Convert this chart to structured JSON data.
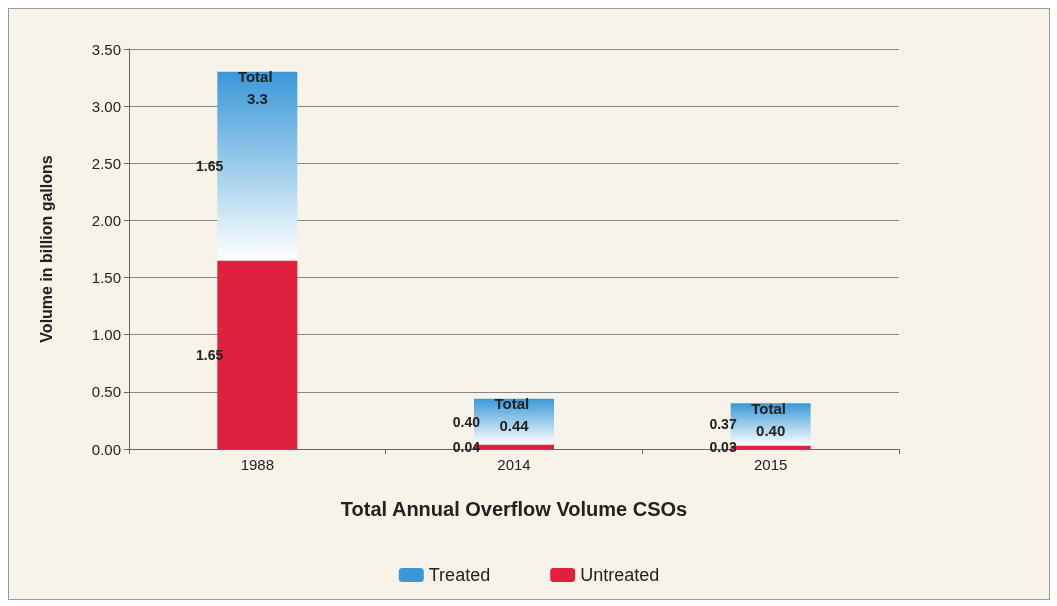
{
  "chart_data": {
    "type": "bar",
    "stacked": true,
    "xlabel": "Total Annual Overflow Volume CSOs",
    "ylabel": "Volume in billion gallons",
    "categories": [
      "1988",
      "2014",
      "2015"
    ],
    "series": [
      {
        "name": "Untreated",
        "color": "#e0203f",
        "values": [
          1.65,
          0.04,
          0.03
        ],
        "value_labels": [
          "1.65",
          "0.04",
          "0.03"
        ]
      },
      {
        "name": "Treated",
        "color": "#3a98d8",
        "values": [
          1.65,
          0.4,
          0.37
        ],
        "value_labels": [
          "1.65",
          "0.40",
          "0.37"
        ]
      }
    ],
    "totals": [
      "Total 3.3",
      "Total 0.44",
      "Total 0.40"
    ],
    "ylim": [
      0,
      3.5
    ],
    "yticks": [
      {
        "value": 0,
        "label": "0.00"
      },
      {
        "value": 0.5,
        "label": "0.50"
      },
      {
        "value": 1,
        "label": "1.00"
      },
      {
        "value": 1.5,
        "label": "1.50"
      },
      {
        "value": 2,
        "label": "2.00"
      },
      {
        "value": 2.5,
        "label": "2.50"
      },
      {
        "value": 3,
        "label": "3.00"
      },
      {
        "value": 3.5,
        "label": "3.50"
      }
    ],
    "grid": "y",
    "legend": "bottom"
  }
}
